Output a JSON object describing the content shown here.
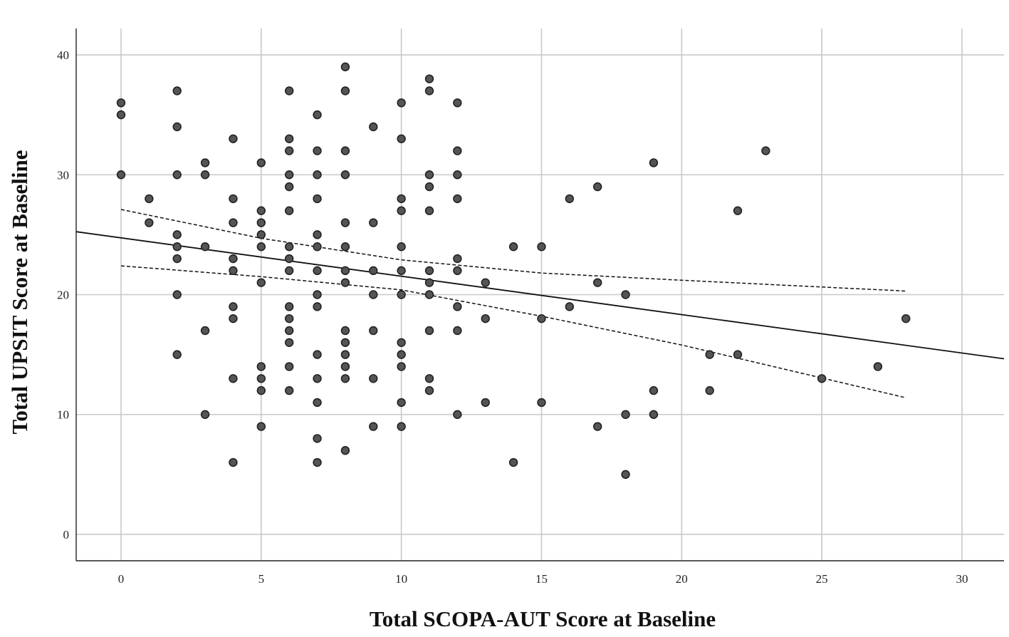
{
  "chart_data": {
    "type": "scatter",
    "xlabel": "Total SCOPA-AUT Score at Baseline",
    "ylabel": "Total UPSIT Score at Baseline",
    "xlim": [
      -1.6,
      31.5
    ],
    "ylim": [
      -2.2,
      42.2
    ],
    "xticks": [
      "0",
      "5",
      "10",
      "15",
      "20",
      "25",
      "30"
    ],
    "yticks": [
      "0",
      "10",
      "20",
      "30",
      "40"
    ],
    "grid": true,
    "points": [
      [
        0,
        36
      ],
      [
        0,
        35
      ],
      [
        0,
        30
      ],
      [
        1,
        28
      ],
      [
        1,
        26
      ],
      [
        2,
        37
      ],
      [
        2,
        34
      ],
      [
        2,
        30
      ],
      [
        2,
        25
      ],
      [
        2,
        24
      ],
      [
        2,
        23
      ],
      [
        2,
        20
      ],
      [
        2,
        15
      ],
      [
        3,
        31
      ],
      [
        3,
        30
      ],
      [
        3,
        24
      ],
      [
        3,
        17
      ],
      [
        3,
        10
      ],
      [
        4,
        33
      ],
      [
        4,
        28
      ],
      [
        4,
        26
      ],
      [
        4,
        23
      ],
      [
        4,
        22
      ],
      [
        4,
        19
      ],
      [
        4,
        18
      ],
      [
        4,
        13
      ],
      [
        4,
        6
      ],
      [
        5,
        31
      ],
      [
        5,
        27
      ],
      [
        5,
        26
      ],
      [
        5,
        25
      ],
      [
        5,
        24
      ],
      [
        5,
        21
      ],
      [
        5,
        14
      ],
      [
        5,
        13
      ],
      [
        5,
        12
      ],
      [
        5,
        9
      ],
      [
        6,
        37
      ],
      [
        6,
        33
      ],
      [
        6,
        32
      ],
      [
        6,
        30
      ],
      [
        6,
        29
      ],
      [
        6,
        27
      ],
      [
        6,
        24
      ],
      [
        6,
        23
      ],
      [
        6,
        22
      ],
      [
        6,
        19
      ],
      [
        6,
        18
      ],
      [
        6,
        17
      ],
      [
        6,
        16
      ],
      [
        6,
        14
      ],
      [
        6,
        12
      ],
      [
        7,
        35
      ],
      [
        7,
        32
      ],
      [
        7,
        30
      ],
      [
        7,
        28
      ],
      [
        7,
        25
      ],
      [
        7,
        24
      ],
      [
        7,
        22
      ],
      [
        7,
        20
      ],
      [
        7,
        19
      ],
      [
        7,
        15
      ],
      [
        7,
        13
      ],
      [
        7,
        11
      ],
      [
        7,
        8
      ],
      [
        7,
        6
      ],
      [
        8,
        39
      ],
      [
        8,
        37
      ],
      [
        8,
        32
      ],
      [
        8,
        30
      ],
      [
        8,
        26
      ],
      [
        8,
        24
      ],
      [
        8,
        22
      ],
      [
        8,
        21
      ],
      [
        8,
        17
      ],
      [
        8,
        16
      ],
      [
        8,
        15
      ],
      [
        8,
        14
      ],
      [
        8,
        13
      ],
      [
        8,
        7
      ],
      [
        9,
        34
      ],
      [
        9,
        26
      ],
      [
        9,
        22
      ],
      [
        9,
        20
      ],
      [
        9,
        17
      ],
      [
        9,
        13
      ],
      [
        9,
        9
      ],
      [
        10,
        36
      ],
      [
        10,
        33
      ],
      [
        10,
        28
      ],
      [
        10,
        27
      ],
      [
        10,
        24
      ],
      [
        10,
        22
      ],
      [
        10,
        20
      ],
      [
        10,
        16
      ],
      [
        10,
        15
      ],
      [
        10,
        14
      ],
      [
        10,
        11
      ],
      [
        10,
        9
      ],
      [
        11,
        38
      ],
      [
        11,
        37
      ],
      [
        11,
        30
      ],
      [
        11,
        29
      ],
      [
        11,
        27
      ],
      [
        11,
        22
      ],
      [
        11,
        21
      ],
      [
        11,
        20
      ],
      [
        11,
        17
      ],
      [
        11,
        13
      ],
      [
        11,
        12
      ],
      [
        12,
        36
      ],
      [
        12,
        32
      ],
      [
        12,
        30
      ],
      [
        12,
        28
      ],
      [
        12,
        23
      ],
      [
        12,
        22
      ],
      [
        12,
        19
      ],
      [
        12,
        17
      ],
      [
        12,
        10
      ],
      [
        13,
        21
      ],
      [
        13,
        18
      ],
      [
        13,
        11
      ],
      [
        14,
        24
      ],
      [
        14,
        6
      ],
      [
        15,
        24
      ],
      [
        15,
        18
      ],
      [
        15,
        11
      ],
      [
        16,
        28
      ],
      [
        16,
        19
      ],
      [
        17,
        29
      ],
      [
        17,
        21
      ],
      [
        17,
        9
      ],
      [
        18,
        20
      ],
      [
        18,
        10
      ],
      [
        18,
        5
      ],
      [
        19,
        31
      ],
      [
        19,
        12
      ],
      [
        19,
        10
      ],
      [
        21,
        15
      ],
      [
        21,
        12
      ],
      [
        22,
        27
      ],
      [
        22,
        15
      ],
      [
        23,
        32
      ],
      [
        25,
        13
      ],
      [
        27,
        14
      ],
      [
        28,
        18
      ]
    ],
    "fit_line": {
      "x": [
        -1.6,
        31.5
      ],
      "y": [
        25.25,
        14.65
      ]
    },
    "ci_upper": {
      "x": [
        0,
        5,
        10,
        15,
        20,
        28
      ],
      "y": [
        27.1,
        24.7,
        22.9,
        21.8,
        21.2,
        20.3
      ]
    },
    "ci_lower": {
      "x": [
        0,
        5,
        10,
        15,
        20,
        28
      ],
      "y": [
        22.4,
        21.5,
        20.4,
        18.2,
        15.8,
        11.4
      ]
    },
    "colors": {
      "point_fill": "#555555",
      "point_edge": "#222222",
      "line": "#111111",
      "grid": "#c8c8c8"
    }
  }
}
